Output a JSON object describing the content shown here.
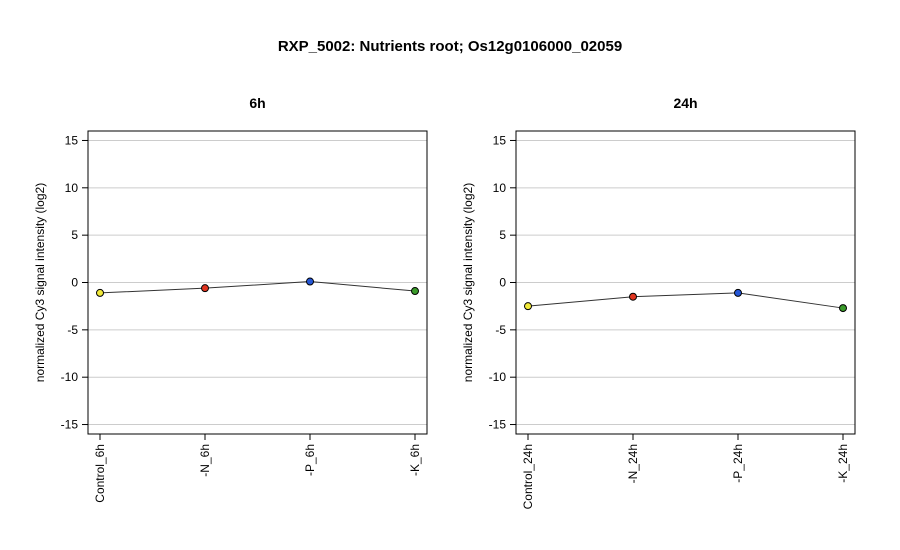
{
  "title": "RXP_5002: Nutrients root; Os12g0106000_02059",
  "chart_data": [
    {
      "type": "line",
      "title": "6h",
      "ylabel": "normalized Cy3 signal intensity (log2)",
      "ylim": [
        -16,
        16
      ],
      "yticks": [
        15,
        10,
        5,
        0,
        -5,
        -10,
        -15
      ],
      "grid": true,
      "categories": [
        "Control_6h",
        "-N_6h",
        "-P_6h",
        "-K_6h"
      ],
      "values": [
        -1.1,
        -0.6,
        0.1,
        -0.9
      ],
      "point_colors": [
        "#f2ea3a",
        "#e0341f",
        "#2456d6",
        "#3a9a2a"
      ]
    },
    {
      "type": "line",
      "title": "24h",
      "ylabel": "normalized Cy3 signal intensity (log2)",
      "ylim": [
        -16,
        16
      ],
      "yticks": [
        15,
        10,
        5,
        0,
        -5,
        -10,
        -15
      ],
      "grid": true,
      "categories": [
        "Control_24h",
        "-N_24h",
        "-P_24h",
        "-K_24h"
      ],
      "values": [
        -2.5,
        -1.5,
        -1.1,
        -2.7
      ],
      "point_colors": [
        "#f2ea3a",
        "#e0341f",
        "#2456d6",
        "#3a9a2a"
      ]
    }
  ]
}
